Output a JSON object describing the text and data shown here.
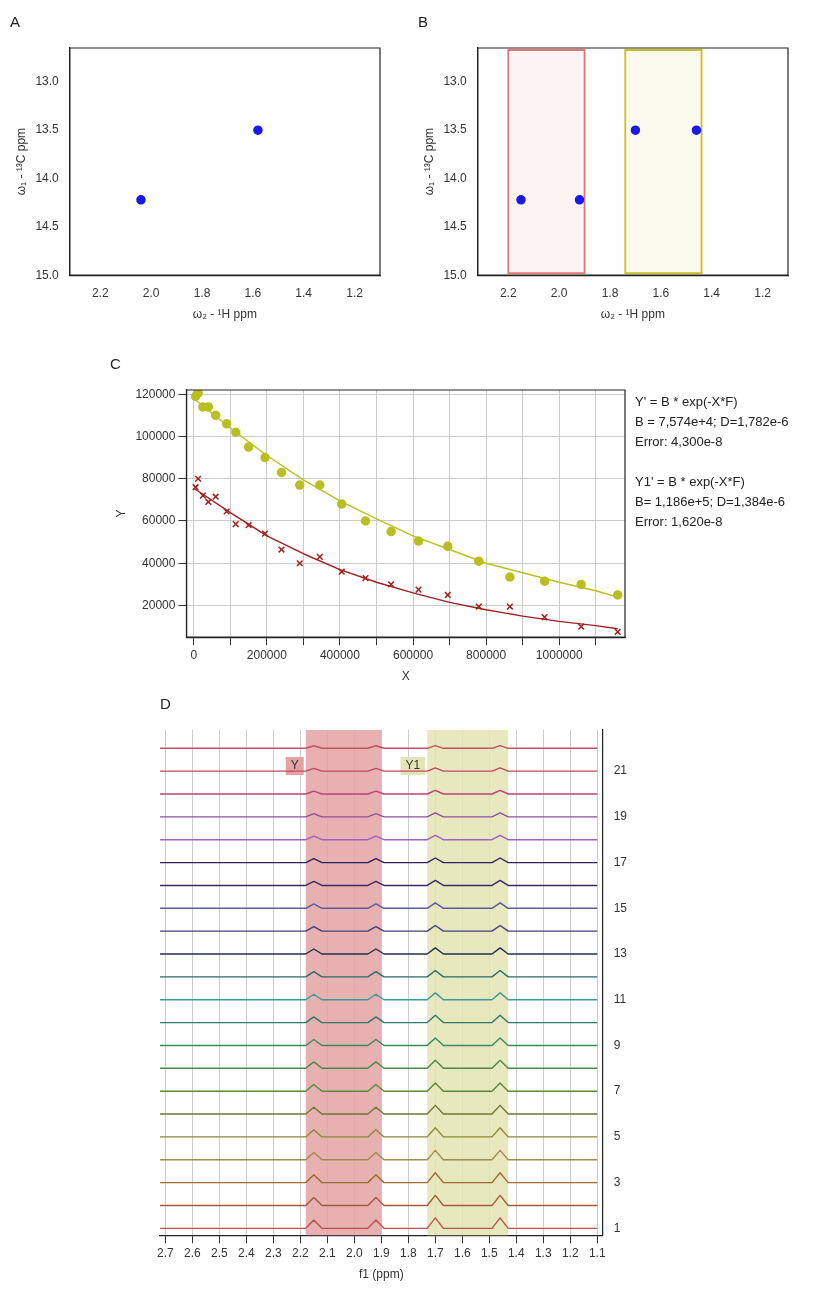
{
  "chart_data": [
    {
      "type": "scatter",
      "title": "A",
      "xlabel": "ω₂ - ¹H ppm",
      "ylabel": "ω₁ - ¹³C ppm",
      "marker": "circle",
      "series": [
        {
          "color": "#1a1ae6",
          "x": [
            2.04,
            1.58
          ],
          "values": [
            14.22,
            13.5
          ]
        }
      ],
      "xlim": [
        2.32,
        1.1
      ],
      "xticks": [
        2.2,
        {
          "value": 2,
          "label": "2.0"
        },
        1.8,
        1.6,
        1.4,
        1.2
      ],
      "ylim": [
        15,
        12.65
      ],
      "yticks": [
        {
          "value": 13,
          "label": "13.0"
        },
        13.5,
        {
          "value": 14,
          "label": "14.0"
        },
        14.5,
        {
          "value": 15,
          "label": "15.0"
        }
      ]
    },
    {
      "type": "scatter",
      "title": "B",
      "xlabel": "ω₂ - ¹H ppm",
      "ylabel": "ω₁ - ¹³C ppm",
      "marker": "circle",
      "series": [
        {
          "color": "#1a1ae6",
          "x": [
            2.15,
            1.92,
            1.7,
            1.46
          ],
          "values": [
            14.22,
            14.22,
            13.5,
            13.5
          ]
        }
      ],
      "bands": [
        {
          "axis": "x",
          "from": 2.2,
          "to": 1.9,
          "color": "#e07878"
        },
        {
          "axis": "x",
          "from": 1.74,
          "to": 1.44,
          "color": "#c8c020"
        }
      ],
      "xlim": [
        2.32,
        1.1
      ],
      "xticks": [
        2.2,
        {
          "value": 2,
          "label": "2.0"
        },
        1.8,
        1.6,
        1.4,
        1.2
      ],
      "ylim": [
        15,
        12.65
      ],
      "yticks": [
        {
          "value": 13,
          "label": "13.0"
        },
        13.5,
        {
          "value": 14,
          "label": "14.0"
        },
        14.5,
        {
          "value": 15,
          "label": "15.0"
        }
      ]
    },
    {
      "type": "scatter",
      "title": "C",
      "xlabel": "X",
      "ylabel": "Y",
      "grid": true,
      "x": [
        5000,
        12000,
        25000,
        40000,
        60000,
        90000,
        115000,
        150000,
        195000,
        240000,
        290000,
        345000,
        405000,
        470000,
        540000,
        615000,
        695000,
        780000,
        865000,
        960000,
        1060000,
        1160000
      ],
      "series": [
        {
          "color": "#b8c020",
          "marker": "circle",
          "values": [
            119000,
            120500,
            114000,
            114000,
            110000,
            106000,
            102000,
            95000,
            90000,
            83000,
            77000,
            77000,
            68000,
            60000,
            55000,
            50500,
            48000,
            41000,
            33500,
            31500,
            30000,
            25000
          ]
        },
        {
          "color": "#a02020",
          "marker": "cross",
          "values": [
            76000,
            80000,
            72000,
            69000,
            71500,
            64500,
            58500,
            58000,
            54000,
            46500,
            40000,
            43000,
            36000,
            33000,
            30000,
            27500,
            25000,
            19500,
            19500,
            14500,
            10000,
            7500
          ]
        },
        {
          "type": "line",
          "color": "#b8c020",
          "marker": "none",
          "x": [
            0,
            100000,
            200000,
            300000,
            400000,
            500000,
            600000,
            700000,
            800000,
            900000,
            1000000,
            1100000,
            1160000
          ],
          "values": [
            118000,
            104000,
            91000,
            79500,
            69500,
            61000,
            53000,
            46500,
            40000,
            35500,
            31000,
            27000,
            24000
          ]
        },
        {
          "type": "line",
          "color": "#a02020",
          "marker": "none",
          "x": [
            0,
            100000,
            200000,
            300000,
            400000,
            500000,
            600000,
            700000,
            800000,
            900000,
            1000000,
            1100000,
            1160000
          ],
          "values": [
            75500,
            64000,
            53000,
            44500,
            37000,
            31000,
            26000,
            21500,
            18000,
            15000,
            12500,
            10500,
            9000
          ]
        }
      ],
      "xlim": [
        -20000,
        1180000
      ],
      "xticks": [
        0,
        {
          "value": 100000,
          "label": null
        },
        200000,
        {
          "value": 300000,
          "label": null
        },
        400000,
        {
          "value": 500000,
          "label": null
        },
        600000,
        {
          "value": 700000,
          "label": null
        },
        800000,
        {
          "value": 900000,
          "label": null
        },
        1000000,
        {
          "value": 1100000,
          "label": null
        }
      ],
      "ylim": [
        5000,
        122000
      ],
      "yticks": [
        20000,
        40000,
        60000,
        80000,
        100000,
        120000
      ],
      "annotations": [
        "Y' = B * exp(-X*F)",
        "B = 7,574e+4; D=1,782e-6",
        "Error: 4,300e-8",
        "Y1' = B * exp(-X*F)",
        "B= 1,186e+5; D=1,384e-6",
        "Error: 1,620e-8"
      ]
    },
    {
      "type": "line",
      "title": "D",
      "xlabel": "f1 (ppm)",
      "grid": "x",
      "x": [
        2.72,
        2.18,
        2.15,
        2.12,
        1.95,
        1.92,
        1.89,
        1.73,
        1.7,
        1.67,
        1.49,
        1.46,
        1.43,
        1.1
      ],
      "series": [
        {
          "axis": "y2",
          "color": "#c0504d",
          "values": [
            1,
            1,
            1.36,
            1,
            1,
            1.36,
            1,
            1,
            1.46,
            1,
            1,
            1.46,
            1,
            1
          ]
        },
        {
          "axis": "y2",
          "color": "#a8583a",
          "values": [
            2,
            2,
            2.35,
            2,
            2,
            2.35,
            2,
            2,
            2.44,
            2,
            2,
            2.44,
            2,
            2
          ]
        },
        {
          "axis": "y2",
          "color": "#a06a30",
          "values": [
            3,
            3,
            3.34,
            3,
            3,
            3.34,
            3,
            3,
            3.43,
            3,
            3,
            3.43,
            3,
            3
          ]
        },
        {
          "axis": "y2",
          "color": "#a08a50",
          "values": [
            4,
            4,
            4.32,
            4,
            4,
            4.32,
            4,
            4,
            4.41,
            4,
            4,
            4.41,
            4,
            4
          ]
        },
        {
          "axis": "y2",
          "color": "#8a8a30",
          "values": [
            5,
            5,
            5.31,
            5,
            5,
            5.31,
            5,
            5,
            5.4,
            5,
            5,
            5.4,
            5,
            5
          ]
        },
        {
          "axis": "y2",
          "color": "#6a7a30",
          "values": [
            6,
            6,
            6.3,
            6,
            6,
            6.3,
            6,
            6,
            6.38,
            6,
            6,
            6.38,
            6,
            6
          ]
        },
        {
          "axis": "y2",
          "color": "#5a8a3a",
          "values": [
            7,
            7,
            7.29,
            7,
            7,
            7.29,
            7,
            7,
            7.36,
            7,
            7,
            7.36,
            7,
            7
          ]
        },
        {
          "axis": "y2",
          "color": "#4a8a4a",
          "values": [
            8,
            8,
            8.28,
            8,
            8,
            8.28,
            8,
            8,
            8.35,
            8,
            8,
            8.35,
            8,
            8
          ]
        },
        {
          "axis": "y2",
          "color": "#3a8a5a",
          "values": [
            9,
            9,
            9.26,
            9,
            9,
            9.26,
            9,
            9,
            9.33,
            9,
            9,
            9.33,
            9,
            9
          ]
        },
        {
          "axis": "y2",
          "color": "#2f7a6a",
          "values": [
            10,
            10,
            10.25,
            10,
            10,
            10.25,
            10,
            10,
            10.32,
            10,
            10,
            10.32,
            10,
            10
          ]
        },
        {
          "axis": "y2",
          "color": "#3a9a9a",
          "values": [
            11,
            11,
            11.24,
            11,
            11,
            11.24,
            11,
            11,
            11.3,
            11,
            11,
            11.3,
            11,
            11
          ]
        },
        {
          "axis": "y2",
          "color": "#2a6a6a",
          "values": [
            12,
            12,
            12.23,
            12,
            12,
            12.23,
            12,
            12,
            12.28,
            12,
            12,
            12.28,
            12,
            12
          ]
        },
        {
          "axis": "y2",
          "color": "#203050",
          "values": [
            13,
            13,
            13.22,
            13,
            13,
            13.22,
            13,
            13,
            13.27,
            13,
            13,
            13.27,
            13,
            13
          ]
        },
        {
          "axis": "y2",
          "color": "#40407a",
          "values": [
            14,
            14,
            14.2,
            14,
            14,
            14.2,
            14,
            14,
            14.25,
            14,
            14,
            14.25,
            14,
            14
          ]
        },
        {
          "axis": "y2",
          "color": "#5a5aa0",
          "values": [
            15,
            15,
            15.19,
            15,
            15,
            15.19,
            15,
            15,
            15.24,
            15,
            15,
            15.24,
            15,
            15
          ]
        },
        {
          "axis": "y2",
          "color": "#3a2a6a",
          "values": [
            16,
            16,
            16.18,
            16,
            16,
            16.18,
            16,
            16,
            16.22,
            16,
            16,
            16.22,
            16,
            16
          ]
        },
        {
          "axis": "y2",
          "color": "#302060",
          "values": [
            17,
            17,
            17.17,
            17,
            17,
            17.17,
            17,
            17,
            17.2,
            17,
            17,
            17.2,
            17,
            17
          ]
        },
        {
          "axis": "y2",
          "color": "#a060c0",
          "values": [
            18,
            18,
            18.16,
            18,
            18,
            18.16,
            18,
            18,
            18.19,
            18,
            18,
            18.19,
            18,
            18
          ]
        },
        {
          "axis": "y2",
          "color": "#9050a0",
          "values": [
            19,
            19,
            19.14,
            19,
            19,
            19.14,
            19,
            19,
            19.17,
            19,
            19,
            19.17,
            19,
            19
          ]
        },
        {
          "axis": "y2",
          "color": "#c04080",
          "values": [
            20,
            20,
            20.13,
            20,
            20,
            20.13,
            20,
            20,
            20.16,
            20,
            20,
            20.16,
            20,
            20
          ]
        },
        {
          "axis": "y2",
          "color": "#c04a60",
          "values": [
            21,
            21,
            21.12,
            21,
            21,
            21.12,
            21,
            21,
            21.14,
            21,
            21,
            21.14,
            21,
            21
          ]
        },
        {
          "axis": "y2",
          "color": "#c85060",
          "values": [
            22,
            22,
            22.11,
            22,
            22,
            22.11,
            22,
            22,
            22.12,
            22,
            22,
            22.12,
            22,
            22
          ]
        }
      ],
      "bands": [
        {
          "axis": "x",
          "from": 2.18,
          "to": 1.9,
          "color": "#e3a3a3",
          "label": "Y"
        },
        {
          "axis": "x",
          "from": 1.73,
          "to": 1.43,
          "color": "#e4e4b4",
          "label": "Y1"
        }
      ],
      "xlim": [
        2.72,
        1.08
      ],
      "xticks": [
        2.7,
        2.6,
        2.5,
        2.4,
        2.3,
        2.2,
        2.1,
        {
          "value": 2,
          "label": "2.0"
        },
        1.9,
        1.8,
        1.7,
        1.6,
        1.5,
        1.4,
        1.3,
        1.2,
        1.1
      ],
      "y2lim": [
        0.7,
        22.8
      ],
      "y2ticks": [
        1,
        3,
        5,
        7,
        9,
        11,
        13,
        15,
        17,
        19,
        21
      ]
    }
  ]
}
